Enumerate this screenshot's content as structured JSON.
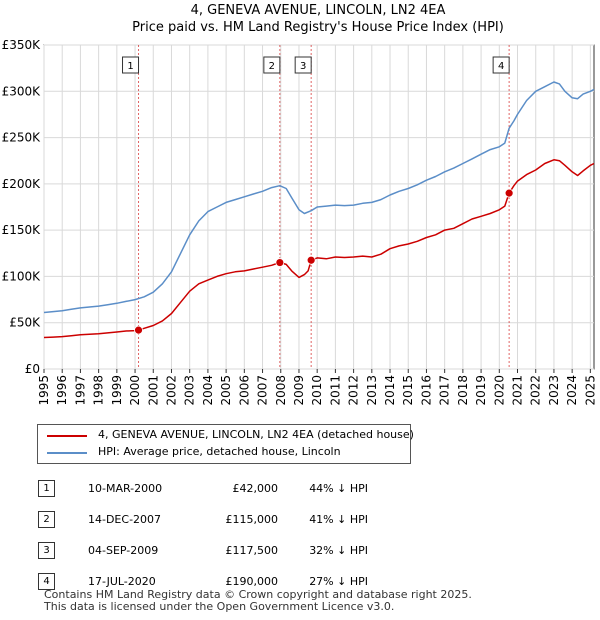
{
  "title_line1": "4, GENEVA AVENUE, LINCOLN, LN2 4EA",
  "title_line2": "Price paid vs. HM Land Registry's House Price Index (HPI)",
  "chart_data": {
    "type": "line",
    "title": "4, GENEVA AVENUE, LINCOLN, LN2 4EA — Price paid vs. HM Land Registry's House Price Index (HPI)",
    "xlim": [
      1995,
      2025.2
    ],
    "ylim": [
      0,
      350000
    ],
    "x_ticks": [
      "1995",
      "1996",
      "1997",
      "1998",
      "1999",
      "2000",
      "2001",
      "2002",
      "2003",
      "2004",
      "2005",
      "2006",
      "2007",
      "2008",
      "2009",
      "2010",
      "2011",
      "2012",
      "2013",
      "2014",
      "2015",
      "2016",
      "2017",
      "2018",
      "2019",
      "2020",
      "2021",
      "2022",
      "2023",
      "2024",
      "2025"
    ],
    "y_ticks": [
      {
        "value": 0,
        "label": "£0"
      },
      {
        "value": 50000,
        "label": "£50K"
      },
      {
        "value": 100000,
        "label": "£100K"
      },
      {
        "value": 150000,
        "label": "£150K"
      },
      {
        "value": 200000,
        "label": "£200K"
      },
      {
        "value": 250000,
        "label": "£250K"
      },
      {
        "value": 300000,
        "label": "£300K"
      },
      {
        "value": 350000,
        "label": "£350K"
      }
    ],
    "grid": true,
    "series": [
      {
        "name": "4, GENEVA AVENUE, LINCOLN, LN2 4EA (detached house)",
        "color": "#cc0000",
        "x": [
          1995.0,
          1995.5,
          1996.0,
          1996.5,
          1997.0,
          1997.5,
          1998.0,
          1998.5,
          1999.0,
          1999.5,
          2000.0,
          2000.19,
          2000.5,
          2001.0,
          2001.5,
          2002.0,
          2002.5,
          2003.0,
          2003.5,
          2004.0,
          2004.5,
          2005.0,
          2005.5,
          2006.0,
          2006.5,
          2007.0,
          2007.5,
          2007.95,
          2008.3,
          2008.6,
          2009.0,
          2009.3,
          2009.5,
          2009.67,
          2010.0,
          2010.5,
          2011.0,
          2011.5,
          2012.0,
          2012.5,
          2013.0,
          2013.5,
          2014.0,
          2014.5,
          2015.0,
          2015.5,
          2016.0,
          2016.5,
          2017.0,
          2017.5,
          2018.0,
          2018.5,
          2019.0,
          2019.5,
          2020.0,
          2020.3,
          2020.54,
          2020.8,
          2021.0,
          2021.5,
          2022.0,
          2022.5,
          2023.0,
          2023.3,
          2023.6,
          2024.0,
          2024.3,
          2024.6,
          2025.0,
          2025.2
        ],
        "values": [
          34000,
          34500,
          35000,
          36000,
          37000,
          37500,
          38000,
          39000,
          40000,
          41000,
          41500,
          42000,
          44000,
          47000,
          52000,
          60000,
          72000,
          84000,
          92000,
          96000,
          100000,
          103000,
          105000,
          106000,
          108000,
          110000,
          112000,
          115000,
          113000,
          106000,
          99000,
          102000,
          106000,
          117500,
          120000,
          119000,
          121000,
          120500,
          121000,
          122000,
          121000,
          124000,
          130000,
          133000,
          135000,
          138000,
          142000,
          145000,
          150000,
          152000,
          157000,
          162000,
          165000,
          168000,
          172000,
          176000,
          190000,
          198000,
          203000,
          210000,
          215000,
          222000,
          226000,
          225000,
          220000,
          213000,
          209000,
          214000,
          220000,
          222000
        ]
      },
      {
        "name": "HPI: Average price, detached house, Lincoln",
        "color": "#5b8ec8",
        "x": [
          1995.0,
          1995.5,
          1996.0,
          1996.5,
          1997.0,
          1997.5,
          1998.0,
          1998.5,
          1999.0,
          1999.5,
          2000.0,
          2000.5,
          2001.0,
          2001.5,
          2002.0,
          2002.5,
          2003.0,
          2003.5,
          2004.0,
          2004.5,
          2005.0,
          2005.5,
          2006.0,
          2006.5,
          2007.0,
          2007.5,
          2007.95,
          2008.3,
          2008.6,
          2009.0,
          2009.3,
          2009.67,
          2010.0,
          2010.5,
          2011.0,
          2011.5,
          2012.0,
          2012.5,
          2013.0,
          2013.5,
          2014.0,
          2014.5,
          2015.0,
          2015.5,
          2016.0,
          2016.5,
          2017.0,
          2017.5,
          2018.0,
          2018.5,
          2019.0,
          2019.5,
          2020.0,
          2020.3,
          2020.54,
          2020.8,
          2021.0,
          2021.5,
          2022.0,
          2022.5,
          2023.0,
          2023.3,
          2023.6,
          2024.0,
          2024.3,
          2024.6,
          2025.0,
          2025.2
        ],
        "values": [
          61000,
          62000,
          63000,
          64500,
          66000,
          67000,
          68000,
          69500,
          71000,
          73000,
          75000,
          78000,
          83000,
          92000,
          105000,
          125000,
          145000,
          160000,
          170000,
          175000,
          180000,
          183000,
          186000,
          189000,
          192000,
          196000,
          198000,
          195000,
          185000,
          172000,
          168000,
          171000,
          175000,
          176000,
          177000,
          176500,
          177000,
          179000,
          180000,
          183000,
          188000,
          192000,
          195000,
          199000,
          204000,
          208000,
          213000,
          217000,
          222000,
          227000,
          232000,
          237000,
          240000,
          244000,
          260000,
          268000,
          275000,
          290000,
          300000,
          305000,
          310000,
          308000,
          300000,
          293000,
          292000,
          297000,
          300000,
          302000
        ]
      }
    ],
    "sales": [
      {
        "id": "1",
        "x": 2000.19,
        "value": 42000
      },
      {
        "id": "2",
        "x": 2007.95,
        "value": 115000
      },
      {
        "id": "3",
        "x": 2009.67,
        "value": 117500
      },
      {
        "id": "4",
        "x": 2020.54,
        "value": 190000
      }
    ]
  },
  "legend": {
    "property_label": "4, GENEVA AVENUE, LINCOLN, LN2 4EA (detached house)",
    "hpi_label": "HPI: Average price, detached house, Lincoln"
  },
  "transactions": [
    {
      "num": "1",
      "date": "10-MAR-2000",
      "price": "£42,000",
      "hpi": "44% ↓ HPI"
    },
    {
      "num": "2",
      "date": "14-DEC-2007",
      "price": "£115,000",
      "hpi": "41% ↓ HPI"
    },
    {
      "num": "3",
      "date": "04-SEP-2009",
      "price": "£117,500",
      "hpi": "32% ↓ HPI"
    },
    {
      "num": "4",
      "date": "17-JUL-2020",
      "price": "£190,000",
      "hpi": "27% ↓ HPI"
    }
  ],
  "footer": {
    "line1": "Contains HM Land Registry data © Crown copyright and database right 2025.",
    "line2": "This data is licensed under the Open Government Licence v3.0."
  },
  "colors": {
    "property": "#cc0000",
    "hpi": "#5b8ec8",
    "grid": "#d9d9d9",
    "sale_line": "#cc0000"
  }
}
